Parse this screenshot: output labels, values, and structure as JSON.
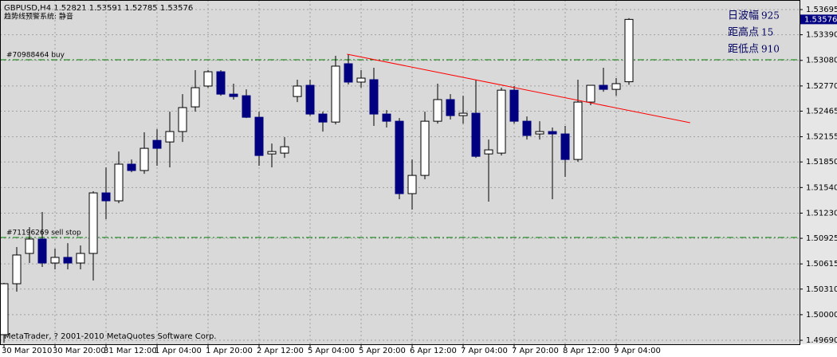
{
  "chart_data": {
    "type": "candlestick",
    "title": "GBPUSD,H4  1.52821 1.53591 1.52785 1.53576",
    "subtitle": "趋势线预警系统: 静音",
    "footer": "MetaTrader, ? 2001-2010 MetaQuotes Software Corp.",
    "categories": [
      "30 Mar 2010",
      null,
      null,
      null,
      "30 Mar 20:00",
      null,
      null,
      null,
      "31 Mar 12:00",
      null,
      null,
      null,
      "1 Apr 04:00",
      null,
      null,
      null,
      "1 Apr 20:00",
      null,
      null,
      null,
      "2 Apr 12:00",
      null,
      null,
      null,
      "5 Apr 04:00",
      null,
      null,
      null,
      "5 Apr 20:00",
      null,
      null,
      null,
      "6 Apr 12:00",
      null,
      null,
      null,
      "7 Apr 04:00",
      null,
      null,
      null,
      "7 Apr 20:00",
      null,
      null,
      null,
      "8 Apr 12:00",
      null,
      null,
      null,
      "9 Apr 04:00",
      null
    ],
    "open": [
      1.49758,
      1.50375,
      1.50742,
      1.50916,
      1.50626,
      1.50694,
      1.50626,
      1.50742,
      1.51475,
      1.51379,
      1.51823,
      1.51746,
      1.52111,
      1.52092,
      1.52218,
      1.52517,
      1.52769,
      1.52942,
      1.52671,
      1.52652,
      1.52391,
      1.51947,
      1.51957,
      1.52642,
      1.52778,
      1.5243,
      1.52333,
      1.53039,
      1.52817,
      1.52846,
      1.5243,
      1.52343,
      1.51466,
      1.51687,
      1.52343,
      1.52605,
      1.52411,
      1.5244,
      1.51947,
      1.51957,
      1.52719,
      1.52343,
      1.52189,
      1.52218,
      1.52189,
      1.5188,
      1.52575,
      1.52778,
      1.52729,
      1.52821
    ],
    "high": [
      1.50385,
      1.50819,
      1.51061,
      1.51244,
      1.508,
      1.50867,
      1.50839,
      1.51495,
      1.51784,
      1.51976,
      1.5188,
      1.52209,
      1.52247,
      1.52459,
      1.52671,
      1.52962,
      1.52962,
      1.52962,
      1.52798,
      1.52729,
      1.52459,
      1.52073,
      1.5215,
      1.52846,
      1.52846,
      1.52459,
      1.53135,
      1.53155,
      1.52962,
      1.52991,
      1.52478,
      1.52382,
      1.5188,
      1.52459,
      1.52798,
      1.52671,
      1.52652,
      1.52846,
      1.52121,
      1.52749,
      1.52769,
      1.52401,
      1.52343,
      1.52267,
      1.52286,
      1.52846,
      1.52778,
      1.52991,
      1.52865,
      1.53591
    ],
    "low": [
      1.4966,
      1.50279,
      1.50626,
      1.50578,
      1.50549,
      1.50549,
      1.50549,
      1.50414,
      1.51157,
      1.5135,
      1.51725,
      1.51706,
      1.51804,
      1.51784,
      1.52092,
      1.52459,
      1.52749,
      1.52652,
      1.52605,
      1.52382,
      1.51804,
      1.51784,
      1.51899,
      1.52575,
      1.52411,
      1.52218,
      1.52304,
      1.52788,
      1.52749,
      1.52286,
      1.52267,
      1.51398,
      1.51273,
      1.5164,
      1.52314,
      1.52363,
      1.52314,
      1.51899,
      1.51369,
      1.51928,
      1.52314,
      1.52121,
      1.52121,
      1.51398,
      1.51668,
      1.51852,
      1.52537,
      1.527,
      1.52652,
      1.52785
    ],
    "close": [
      1.50375,
      1.50723,
      1.50916,
      1.50626,
      1.50694,
      1.50626,
      1.50742,
      1.51475,
      1.51379,
      1.51823,
      1.51746,
      1.52015,
      1.52015,
      1.52218,
      1.52508,
      1.52749,
      1.52942,
      1.52671,
      1.52642,
      1.52391,
      1.51928,
      1.51976,
      1.52034,
      1.52769,
      1.5243,
      1.52333,
      1.5301,
      1.52817,
      1.52865,
      1.5243,
      1.52343,
      1.51466,
      1.51687,
      1.52343,
      1.52605,
      1.52411,
      1.5244,
      1.51918,
      1.51996,
      1.52719,
      1.52343,
      1.5217,
      1.52218,
      1.52189,
      1.5188,
      1.52575,
      1.52778,
      1.52729,
      1.52798,
      1.53576
    ],
    "up_color": "#ffffff",
    "down_color": "#000080",
    "wick_color": "#000000",
    "ylim": [
      1.49642,
      1.53811
    ],
    "yticks": [
      {
        "value": 1.53695,
        "label": "1.53695"
      },
      {
        "value": 1.5339,
        "label": "1.53390"
      },
      {
        "value": 1.5308,
        "label": "1.53080"
      },
      {
        "value": 1.5277,
        "label": "1.52770"
      },
      {
        "value": 1.52465,
        "label": "1.52465"
      },
      {
        "value": 1.52155,
        "label": "1.52155"
      },
      {
        "value": 1.5185,
        "label": "1.51850"
      },
      {
        "value": 1.5154,
        "label": "1.51540"
      },
      {
        "value": 1.5123,
        "label": "1.51230"
      },
      {
        "value": 1.50925,
        "label": "1.50925"
      },
      {
        "value": 1.50615,
        "label": "1.50615"
      },
      {
        "value": 1.5031,
        "label": "1.50310"
      },
      {
        "value": 1.5,
        "label": "1.50000"
      },
      {
        "value": 1.4969,
        "label": "1.49690"
      }
    ],
    "grid": true,
    "current_price": 1.53576,
    "levels": [
      {
        "label": "#70988464 buy",
        "value": 1.53087,
        "color": "#008000"
      },
      {
        "label": "#71196269 sell stop",
        "value": 1.50935,
        "color": "#008000"
      }
    ],
    "trendline": {
      "x": [
        26.9,
        53.8
      ],
      "y": [
        1.53155,
        1.52325
      ],
      "color": "#ff0000"
    },
    "info": [
      {
        "label": "日波幅",
        "value": 925
      },
      {
        "label": "距高点",
        "value": 15
      },
      {
        "label": "距低点",
        "value": 910
      }
    ]
  }
}
